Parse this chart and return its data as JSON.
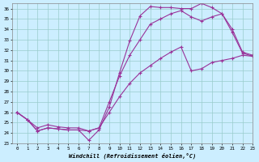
{
  "xlabel": "Windchill (Refroidissement éolien,°C)",
  "bg_color": "#cceeff",
  "line_color": "#993399",
  "grid_color": "#99cccc",
  "x_ticks": [
    0,
    1,
    2,
    3,
    4,
    5,
    6,
    7,
    8,
    9,
    10,
    11,
    12,
    13,
    14,
    15,
    16,
    17,
    18,
    19,
    20,
    21,
    22,
    23
  ],
  "y_ticks": [
    23,
    24,
    25,
    26,
    27,
    28,
    29,
    30,
    31,
    32,
    33,
    34,
    35,
    36
  ],
  "ylim": [
    23,
    36.5
  ],
  "xlim": [
    -0.5,
    23
  ],
  "line1": [
    26.0,
    25.3,
    24.2,
    24.5,
    24.4,
    24.3,
    24.3,
    23.3,
    24.3,
    26.5,
    29.8,
    32.9,
    35.3,
    36.2,
    36.1,
    36.1,
    36.0,
    36.0,
    36.5,
    36.1,
    35.5,
    33.7,
    31.7,
    31.4
  ],
  "line2": [
    26.0,
    25.3,
    24.5,
    24.8,
    24.6,
    24.5,
    24.5,
    24.2,
    24.5,
    27.0,
    29.5,
    31.5,
    33.0,
    34.5,
    35.0,
    35.5,
    35.8,
    35.2,
    34.8,
    35.2,
    35.5,
    34.0,
    31.8,
    31.5
  ],
  "line3": [
    26.0,
    25.3,
    24.2,
    24.5,
    24.4,
    24.3,
    24.3,
    24.2,
    24.5,
    26.0,
    27.5,
    28.8,
    29.8,
    30.5,
    31.2,
    31.8,
    32.3,
    30.0,
    30.2,
    30.8,
    31.0,
    31.2,
    31.5,
    31.4
  ]
}
